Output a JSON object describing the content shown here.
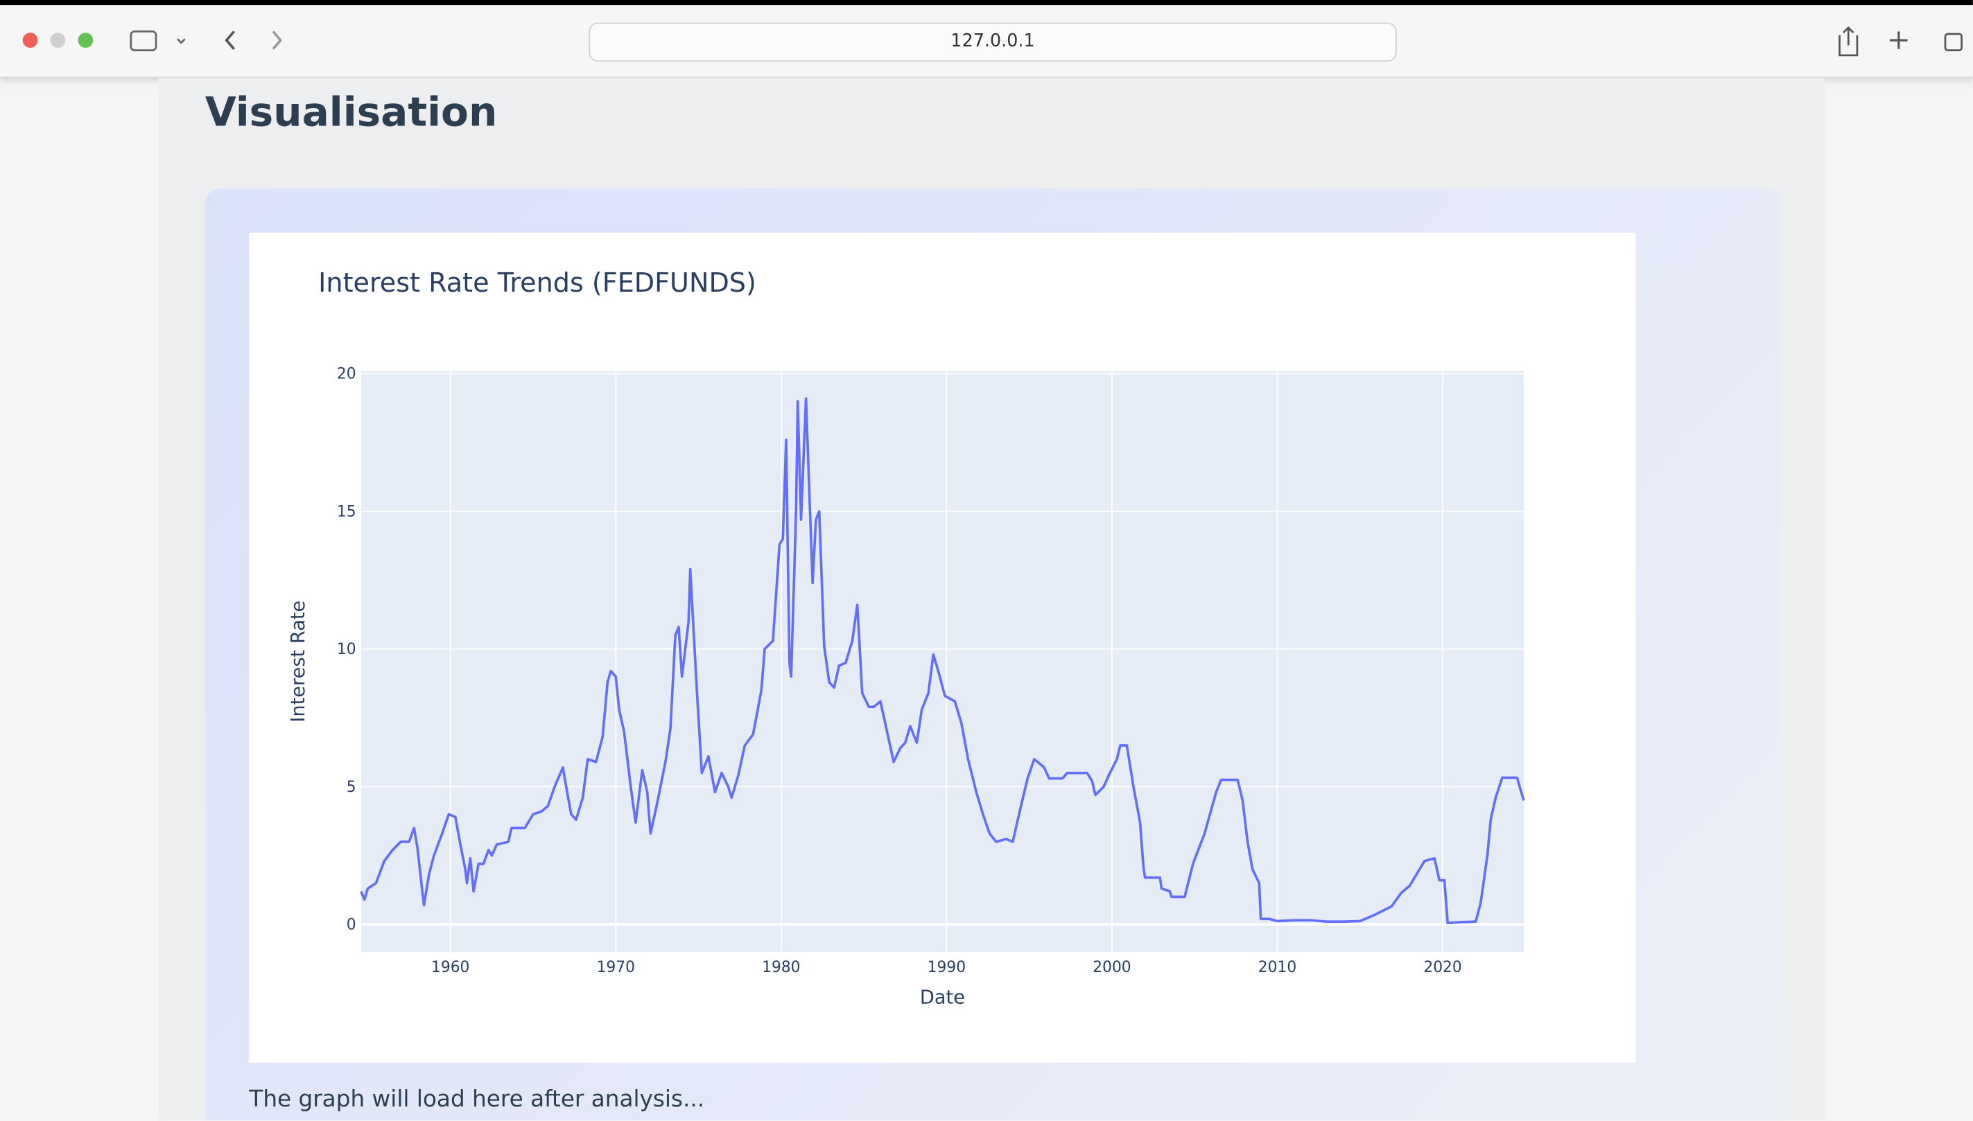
{
  "browser": {
    "url": "127.0.0.1"
  },
  "page": {
    "heading": "Visualisation",
    "status_text": "The graph will load here after analysis..."
  },
  "chart_data": {
    "type": "line",
    "title": "Interest Rate Trends (FEDFUNDS)",
    "x_label": "Date",
    "y_label": "Interest Rate",
    "color": "#636efa",
    "grid": true,
    "xlim": [
      1954.6,
      2024.9
    ],
    "xticks": [
      1960,
      1970,
      1980,
      1990,
      2000,
      2010,
      2020
    ],
    "ylim": [
      -1.0,
      20.1
    ],
    "yticks": [
      0,
      5,
      10,
      15,
      20
    ],
    "x": [
      1954.6,
      1954.8,
      1955.0,
      1955.5,
      1956.0,
      1956.5,
      1957.0,
      1957.5,
      1957.8,
      1958.0,
      1958.3,
      1958.4,
      1958.7,
      1959.0,
      1959.5,
      1959.9,
      1960.3,
      1960.6,
      1960.9,
      1961.0,
      1961.2,
      1961.4,
      1961.7,
      1962.0,
      1962.3,
      1962.5,
      1962.8,
      1963.5,
      1963.7,
      1964.5,
      1965.0,
      1965.5,
      1965.9,
      1966.3,
      1966.8,
      1967.0,
      1967.3,
      1967.6,
      1968.0,
      1968.3,
      1968.8,
      1969.2,
      1969.5,
      1969.7,
      1970.0,
      1970.2,
      1970.5,
      1970.9,
      1971.2,
      1971.6,
      1971.9,
      1972.1,
      1972.5,
      1973.0,
      1973.3,
      1973.6,
      1973.8,
      1974.0,
      1974.4,
      1974.5,
      1974.9,
      1975.2,
      1975.6,
      1976.0,
      1976.4,
      1976.8,
      1977.0,
      1977.4,
      1977.8,
      1978.3,
      1978.8,
      1979.0,
      1979.5,
      1979.9,
      1980.1,
      1980.3,
      1980.5,
      1980.6,
      1980.9,
      1981.0,
      1981.2,
      1981.5,
      1981.9,
      1982.1,
      1982.3,
      1982.6,
      1982.9,
      1983.2,
      1983.5,
      1983.9,
      1984.3,
      1984.6,
      1984.9,
      1985.3,
      1985.6,
      1986.0,
      1986.4,
      1986.8,
      1987.2,
      1987.5,
      1987.8,
      1988.2,
      1988.5,
      1988.9,
      1989.2,
      1989.5,
      1989.9,
      1990.5,
      1990.9,
      1991.3,
      1991.8,
      1992.2,
      1992.6,
      1993.0,
      1993.6,
      1994.0,
      1994.5,
      1994.9,
      1995.3,
      1995.9,
      1996.2,
      1997.0,
      1997.3,
      1998.5,
      1998.8,
      1999.0,
      1999.5,
      1999.8,
      2000.3,
      2000.5,
      2000.9,
      2001.3,
      2001.7,
      2001.9,
      2002.0,
      2002.9,
      2003.0,
      2003.5,
      2003.6,
      2004.4,
      2004.9,
      2005.6,
      2006.3,
      2006.6,
      2007.6,
      2007.9,
      2008.2,
      2008.5,
      2008.9,
      2009.0,
      2009.5,
      2010.0,
      2011.0,
      2012.0,
      2013.0,
      2014.0,
      2015.0,
      2015.9,
      2016.9,
      2017.5,
      2018.0,
      2018.5,
      2018.9,
      2019.5,
      2019.8,
      2020.1,
      2020.3,
      2021.0,
      2022.0,
      2022.3,
      2022.7,
      2022.9,
      2023.2,
      2023.6,
      2024.5,
      2024.7,
      2024.9
    ],
    "values": [
      1.2,
      0.9,
      1.3,
      1.5,
      2.3,
      2.7,
      3.0,
      3.0,
      3.5,
      2.8,
      1.2,
      0.7,
      1.8,
      2.5,
      3.3,
      4.0,
      3.9,
      2.9,
      2.0,
      1.5,
      2.4,
      1.2,
      2.2,
      2.2,
      2.7,
      2.5,
      2.9,
      3.0,
      3.5,
      3.5,
      4.0,
      4.1,
      4.3,
      5.0,
      5.7,
      5.0,
      4.0,
      3.8,
      4.6,
      6.0,
      5.9,
      6.8,
      8.8,
      9.2,
      9.0,
      7.8,
      7.0,
      5.0,
      3.7,
      5.6,
      4.8,
      3.3,
      4.4,
      5.9,
      7.1,
      10.5,
      10.8,
      9.0,
      11.0,
      12.9,
      8.5,
      5.5,
      6.1,
      4.8,
      5.5,
      5.0,
      4.6,
      5.4,
      6.5,
      6.9,
      8.5,
      10.0,
      10.3,
      13.8,
      14.0,
      17.6,
      9.5,
      9.0,
      15.0,
      19.0,
      14.7,
      19.1,
      12.4,
      14.7,
      15.0,
      10.1,
      8.8,
      8.6,
      9.4,
      9.5,
      10.3,
      11.6,
      8.4,
      7.9,
      7.9,
      8.1,
      7.0,
      5.9,
      6.4,
      6.6,
      7.2,
      6.6,
      7.8,
      8.4,
      9.8,
      9.2,
      8.3,
      8.1,
      7.3,
      6.0,
      4.8,
      4.0,
      3.3,
      3.0,
      3.1,
      3.0,
      4.3,
      5.3,
      6.0,
      5.7,
      5.3,
      5.3,
      5.5,
      5.5,
      5.2,
      4.7,
      5.0,
      5.4,
      6.0,
      6.5,
      6.5,
      5.0,
      3.7,
      2.1,
      1.7,
      1.7,
      1.3,
      1.2,
      1.0,
      1.0,
      2.2,
      3.3,
      4.8,
      5.25,
      5.25,
      4.5,
      3.0,
      2.0,
      1.5,
      0.2,
      0.2,
      0.12,
      0.15,
      0.15,
      0.1,
      0.1,
      0.12,
      0.35,
      0.65,
      1.15,
      1.4,
      1.9,
      2.3,
      2.4,
      1.6,
      1.6,
      0.05,
      0.08,
      0.1,
      0.8,
      2.5,
      3.8,
      4.6,
      5.33,
      5.33,
      4.9,
      4.5
    ]
  }
}
